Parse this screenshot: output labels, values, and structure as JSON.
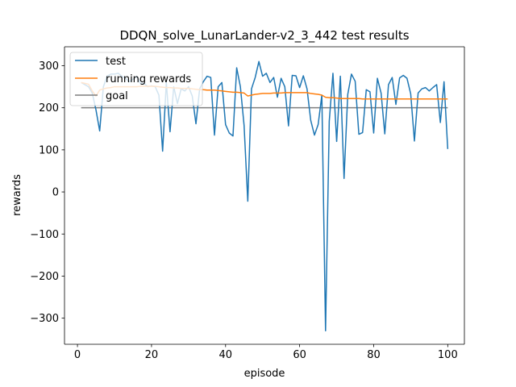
{
  "chart_data": {
    "type": "line",
    "title": "DDQN_solve_LunarLander-v2_3_442 test results",
    "xlabel": "episode",
    "ylabel": "rewards",
    "xlim": [
      -3.5,
      104.5
    ],
    "ylim": [
      -362,
      345
    ],
    "xticks": [
      0,
      20,
      40,
      60,
      80,
      100
    ],
    "yticks": [
      -300,
      -200,
      -100,
      0,
      100,
      200,
      300
    ],
    "xtick_labels": [
      "0",
      "20",
      "40",
      "60",
      "80",
      "100"
    ],
    "ytick_labels": [
      "−300",
      "−200",
      "−100",
      "0",
      "100",
      "200",
      "300"
    ],
    "grid": false,
    "legend_position": "top-left",
    "series": [
      {
        "name": "test",
        "color": "#1f77b4",
        "x": [
          1,
          2,
          3,
          4,
          5,
          6,
          7,
          8,
          9,
          10,
          11,
          12,
          13,
          14,
          15,
          16,
          17,
          18,
          19,
          20,
          21,
          22,
          23,
          24,
          25,
          26,
          27,
          28,
          29,
          30,
          31,
          32,
          33,
          34,
          35,
          36,
          37,
          38,
          39,
          40,
          41,
          42,
          43,
          44,
          45,
          46,
          47,
          48,
          49,
          50,
          51,
          52,
          53,
          54,
          55,
          56,
          57,
          58,
          59,
          60,
          61,
          62,
          63,
          64,
          65,
          66,
          67,
          68,
          69,
          70,
          71,
          72,
          73,
          74,
          75,
          76,
          77,
          78,
          79,
          80,
          81,
          82,
          83,
          84,
          85,
          86,
          87,
          88,
          89,
          90,
          91,
          92,
          93,
          94,
          95,
          96,
          97,
          98,
          99,
          100
        ],
        "values": [
          260,
          255,
          250,
          235,
          195,
          145,
          250,
          275,
          280,
          280,
          282,
          275,
          270,
          262,
          268,
          275,
          258,
          258,
          250,
          252,
          250,
          230,
          97,
          260,
          143,
          250,
          210,
          245,
          240,
          250,
          228,
          162,
          245,
          262,
          275,
          272,
          135,
          250,
          260,
          160,
          140,
          133,
          295,
          250,
          158,
          -22,
          245,
          272,
          310,
          275,
          282,
          260,
          272,
          225,
          270,
          250,
          157,
          277,
          276,
          248,
          276,
          245,
          170,
          135,
          160,
          230,
          -330,
          168,
          282,
          120,
          275,
          32,
          232,
          280,
          263,
          137,
          141,
          243,
          238,
          140,
          270,
          235,
          138,
          255,
          272,
          208,
          271,
          277,
          270,
          233,
          121,
          235,
          245,
          248,
          240,
          248,
          255,
          165,
          262,
          102
        ]
      },
      {
        "name": "running rewards",
        "color": "#ff7f0e",
        "x": [
          1,
          2,
          3,
          4,
          5,
          6,
          7,
          8,
          9,
          10,
          11,
          12,
          13,
          14,
          15,
          16,
          17,
          18,
          19,
          20,
          21,
          22,
          23,
          24,
          25,
          26,
          27,
          28,
          29,
          30,
          31,
          32,
          33,
          34,
          35,
          36,
          37,
          38,
          39,
          40,
          41,
          42,
          43,
          44,
          45,
          46,
          47,
          48,
          49,
          50,
          51,
          52,
          53,
          54,
          55,
          56,
          57,
          58,
          59,
          60,
          61,
          62,
          63,
          64,
          65,
          66,
          67,
          68,
          69,
          70,
          71,
          72,
          73,
          74,
          75,
          76,
          77,
          78,
          79,
          80,
          81,
          82,
          83,
          84,
          85,
          86,
          87,
          88,
          89,
          90,
          91,
          92,
          93,
          94,
          95,
          96,
          97,
          98,
          99,
          100
        ],
        "values": [
          260,
          258,
          256,
          240,
          228,
          242,
          245,
          247,
          248,
          250,
          250,
          250,
          250,
          250,
          250,
          250,
          251,
          251,
          251,
          251,
          251,
          250,
          249,
          248,
          248,
          247,
          247,
          246,
          246,
          246,
          245,
          244,
          243,
          243,
          242,
          242,
          242,
          241,
          240,
          239,
          238,
          237,
          237,
          236,
          235,
          228,
          230,
          232,
          233,
          234,
          234,
          234,
          235,
          235,
          235,
          236,
          236,
          236,
          236,
          236,
          236,
          236,
          234,
          233,
          232,
          230,
          225,
          224,
          224,
          223,
          222,
          222,
          222,
          222,
          222,
          222,
          221,
          221,
          221,
          221,
          221,
          221,
          221,
          221,
          221,
          221,
          221,
          221,
          221,
          221,
          221,
          221,
          221,
          221,
          221,
          221,
          221,
          221,
          221,
          221
        ]
      },
      {
        "name": "goal",
        "color": "#7f7f7f",
        "x": [
          1,
          100
        ],
        "values": [
          200,
          200
        ]
      }
    ]
  }
}
